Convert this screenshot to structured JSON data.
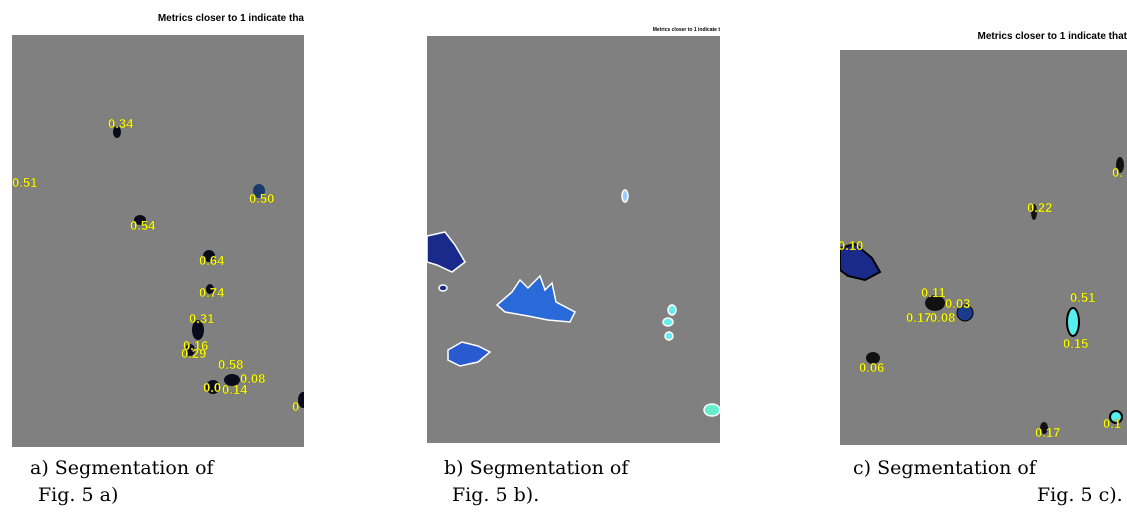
{
  "panels": [
    {
      "header": "Metrics closer to 1 indicate tha",
      "labels": [
        "0.34",
        "0.51",
        "0.50",
        "0.54",
        "0.64",
        "0.74",
        "0.31",
        "0.16",
        "0.29",
        "0.58",
        "0.08",
        "0.0",
        "0.14",
        "0"
      ],
      "caption": [
        "a) Segmentation of",
        "Fig. 5 a)"
      ]
    },
    {
      "header": "Metrics closer to 1 indicate t",
      "labels": [],
      "caption": [
        "b) Segmentation of",
        "Fig. 5 b)."
      ]
    },
    {
      "header": "Metrics closer to 1 indicate that",
      "labels": [
        "0.10",
        "0.22",
        "0.11",
        "0.03",
        "0.17",
        "0.08",
        "0.51",
        "0.15",
        "0.06",
        "0.17",
        "0.1",
        "0."
      ],
      "caption": [
        "c) Segmentation of",
        "Fig. 5 c)."
      ]
    }
  ]
}
